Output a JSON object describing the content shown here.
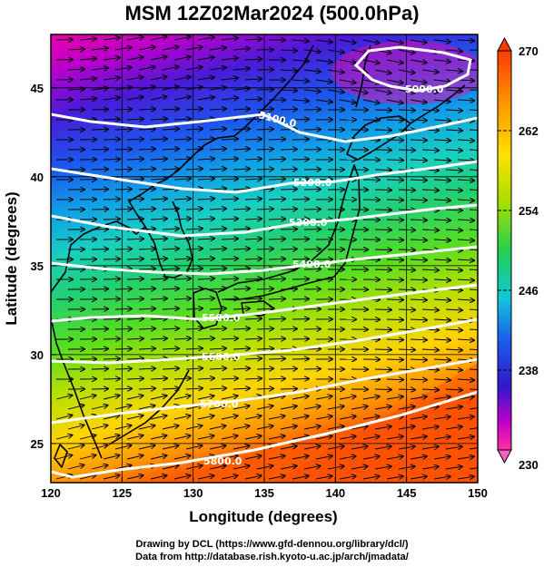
{
  "title": "MSM 12Z02Mar2024 (500.0hPa)",
  "xaxis": {
    "label": "Longitude (degrees)",
    "ticks": [
      "120",
      "125",
      "130",
      "135",
      "140",
      "145",
      "150"
    ]
  },
  "yaxis": {
    "label": "Latitude  (degrees)",
    "ticks": [
      "25",
      "30",
      "35",
      "40",
      "45"
    ]
  },
  "colorbar": {
    "ticks": [
      "270",
      "262",
      "254",
      "246",
      "238",
      "230"
    ],
    "min": 230,
    "max": 270
  },
  "contours": [
    {
      "label": "5000.0"
    },
    {
      "label": "5100.0"
    },
    {
      "label": "5200.0"
    },
    {
      "label": "5300.0"
    },
    {
      "label": "5400.0"
    },
    {
      "label": "5500.0"
    },
    {
      "label": "5600.0"
    },
    {
      "label": "5700.0"
    },
    {
      "label": "5800.0"
    }
  ],
  "credits": {
    "line1": "Drawing by DCL (https://www.gfd-dennou.org/library/dcl/)",
    "line2": "Data from http://database.rish.kyoto-u.ac.jp/arch/jmadata/"
  },
  "colors": {
    "contour": "#ffffff",
    "coast": "#000000",
    "vector": "#000000"
  }
}
